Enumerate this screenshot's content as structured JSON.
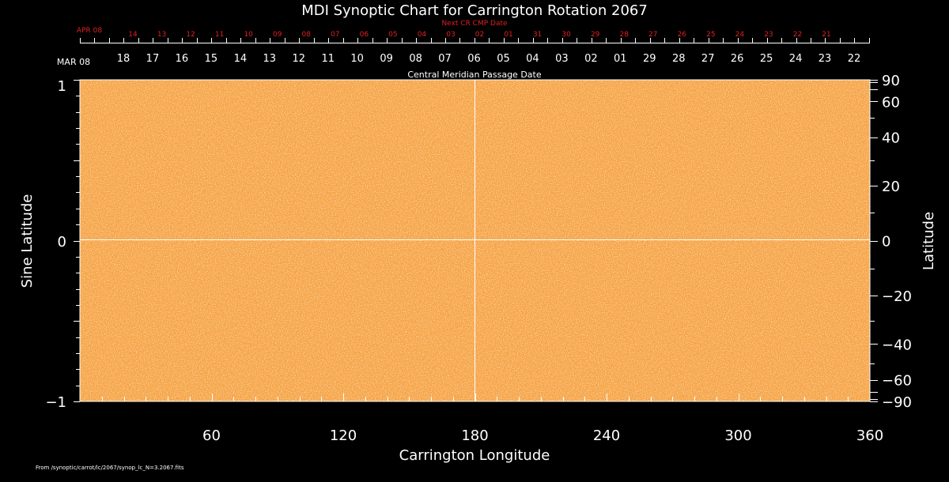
{
  "chart_data": {
    "type": "heatmap",
    "title": "MDI Synoptic Chart for Carrington Rotation 2067",
    "xlabel": "Carrington Longitude",
    "ylabel_left": "Sine Latitude",
    "ylabel_right": "Latitude",
    "xlim": [
      0,
      360
    ],
    "ylim": [
      -1,
      1
    ],
    "x_ticks": [
      "60",
      "120",
      "180",
      "240",
      "300",
      "360"
    ],
    "y_ticks_left": [
      "1",
      "0",
      "−1"
    ],
    "y_ticks_right": [
      "90",
      "60",
      "40",
      "20",
      "0",
      "−20",
      "−40",
      "−60",
      "−90"
    ],
    "top_axis_label": "Central Meridian Passage Date",
    "top_axis_start": "MAR 08",
    "top_axis_dates": [
      "18",
      "17",
      "16",
      "15",
      "14",
      "13",
      "12",
      "11",
      "10",
      "09",
      "08",
      "07",
      "06",
      "05",
      "04",
      "03",
      "02",
      "01",
      "29",
      "28",
      "27",
      "26",
      "25",
      "24",
      "23",
      "22"
    ],
    "next_cr_label": "Next CR CMP Date",
    "next_cr_start": "APR 08",
    "next_cr_dates": [
      "14",
      "13",
      "12",
      "11",
      "10",
      "09",
      "08",
      "07",
      "06",
      "05",
      "04",
      "03",
      "02",
      "01",
      "31",
      "30",
      "29",
      "28",
      "27",
      "26",
      "25",
      "24",
      "23",
      "22",
      "21"
    ],
    "colors": {
      "map": "#f5a040",
      "background": "#000000",
      "axes": "#ffffff",
      "next_cr": "#e02020"
    }
  },
  "footer": {
    "source": "From /synoptic/carrot/lc/2067/synop_lc_N=3.2067.fits"
  }
}
